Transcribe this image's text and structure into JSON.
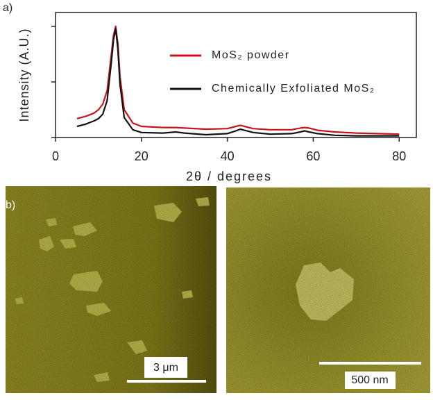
{
  "panel_a_label": "a)",
  "panel_b_label": "b)",
  "chart_data": {
    "type": "line",
    "xlabel": "2θ / degrees",
    "ylabel": "Intensity (A.U.)",
    "x": [
      5,
      7,
      9,
      10,
      11,
      12,
      13,
      13.5,
      14,
      14.5,
      15,
      16,
      18,
      20,
      25,
      28,
      30,
      35,
      40,
      42,
      43,
      44,
      46,
      50,
      55,
      57,
      58,
      59,
      61,
      65,
      70,
      75,
      80
    ],
    "series": [
      {
        "name": "MoS₂ powder",
        "color": "#c8141e",
        "values": [
          0.17,
          0.19,
          0.22,
          0.25,
          0.3,
          0.42,
          0.75,
          0.92,
          1.0,
          0.85,
          0.55,
          0.25,
          0.13,
          0.1,
          0.09,
          0.09,
          0.085,
          0.075,
          0.08,
          0.1,
          0.11,
          0.1,
          0.08,
          0.07,
          0.07,
          0.085,
          0.09,
          0.085,
          0.065,
          0.05,
          0.04,
          0.035,
          0.03
        ]
      },
      {
        "name": "Chemically Exfoliated MoS₂",
        "color": "#111111",
        "values": [
          0.1,
          0.12,
          0.15,
          0.17,
          0.21,
          0.33,
          0.68,
          0.88,
          0.98,
          0.8,
          0.48,
          0.18,
          0.07,
          0.045,
          0.04,
          0.05,
          0.04,
          0.025,
          0.035,
          0.06,
          0.075,
          0.065,
          0.045,
          0.03,
          0.035,
          0.05,
          0.06,
          0.05,
          0.035,
          0.02,
          0.015,
          0.015,
          0.015
        ]
      }
    ],
    "xlim": [
      0,
      84
    ],
    "xticks": [
      0,
      20,
      40,
      60,
      80
    ],
    "ylim": [
      0,
      1.125
    ],
    "yticks": [
      0,
      0.5,
      1
    ]
  },
  "images": [
    {
      "scale_bar": "3 μm"
    },
    {
      "scale_bar": "500 nm"
    }
  ]
}
